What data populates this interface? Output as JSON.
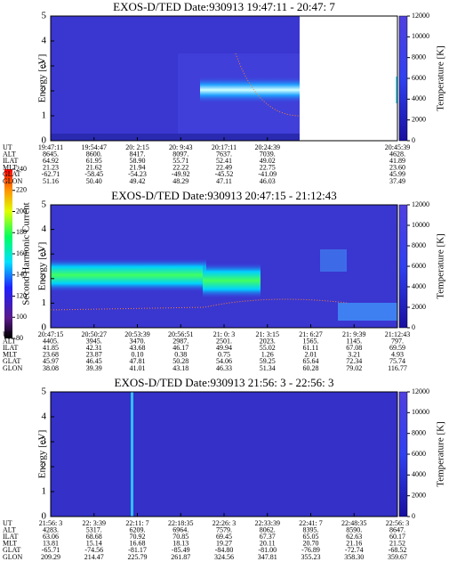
{
  "panels": [
    {
      "title": "EXOS-D/TED   Date:930913  19:47:11 - 20:47: 7",
      "ylabel": "Energy [eV]",
      "yticks": [
        0,
        1,
        2,
        3,
        4,
        5
      ],
      "y2label": "Temperature [K]",
      "y2ticks": [
        0,
        2000,
        4000,
        6000,
        8000,
        10000,
        12000
      ],
      "table": {
        "labels": [
          "UT",
          "ALT",
          "ILAT",
          "MLT",
          "GLAT",
          "GLON"
        ],
        "rows": [
          [
            "19:47:11",
            "19:54:47",
            "20: 2:15",
            "20: 9:43",
            "20:17:11",
            "20:24:39",
            "20:45:39"
          ],
          [
            "8645.",
            "8600.",
            "8417.",
            "8097.",
            "7637.",
            "7039.",
            "4628."
          ],
          [
            "64.92",
            "61.95",
            "58.90",
            "55.71",
            "52.41",
            "49.02",
            "41.89"
          ],
          [
            "21.23",
            "21.62",
            "21.94",
            "22.22",
            "22.49",
            "22.75",
            "23.60"
          ],
          [
            "-62.71",
            "-58.45",
            "-54.23",
            "-49.92",
            "-45.52",
            "-41.09",
            "45.99"
          ],
          [
            "51.16",
            "50.40",
            "49.42",
            "48.29",
            "47.11",
            "46.03",
            "37.49"
          ]
        ]
      }
    },
    {
      "title": "EXOS-D/TED   Date:930913  20:47:15 - 21:12:43",
      "ylabel": "Energy [eV]",
      "yticks": [
        0,
        1,
        2,
        3,
        4,
        5
      ],
      "y2label": "Temperature [K]",
      "y2ticks": [
        0,
        2000,
        4000,
        6000,
        8000,
        10000,
        12000
      ],
      "table": {
        "labels": [
          "UT",
          "ALT",
          "ILAT",
          "MLT",
          "GLAT",
          "GLON"
        ],
        "rows": [
          [
            "20:47:15",
            "20:50:27",
            "20:53:39",
            "20:56:51",
            "21: 0: 3",
            "21: 3:15",
            "21: 6:27",
            "21: 9:39",
            "21:12:43"
          ],
          [
            "4405.",
            "3945.",
            "3470.",
            "2987.",
            "2501.",
            "2023.",
            "1565.",
            "1145.",
            "797."
          ],
          [
            "41.85",
            "42.31",
            "43.68",
            "46.17",
            "49.94",
            "55.02",
            "61.11",
            "67.08",
            "69.59"
          ],
          [
            "23.68",
            "23.87",
            "0.10",
            "0.38",
            "0.75",
            "1.26",
            "2.01",
            "3.21",
            "4.93"
          ],
          [
            "45.97",
            "46.45",
            "47.81",
            "50.28",
            "54.06",
            "59.25",
            "65.64",
            "72.34",
            "75.74"
          ],
          [
            "38.08",
            "39.39",
            "41.01",
            "43.18",
            "46.33",
            "51.34",
            "60.28",
            "79.02",
            "116.77"
          ]
        ]
      }
    },
    {
      "title": "EXOS-D/TED   Date:930913  21:56: 3 - 22:56: 3",
      "ylabel": "Energy [eV]",
      "yticks": [
        0,
        1,
        2,
        3,
        4,
        5
      ],
      "y2label": "Temperature [K]",
      "y2ticks": [
        0,
        2000,
        4000,
        6000,
        8000,
        10000,
        12000
      ],
      "table": {
        "labels": [
          "UT",
          "ALT",
          "ILAT",
          "MLT",
          "GLAT",
          "GLON"
        ],
        "rows": [
          [
            "21:56: 3",
            "22: 3:39",
            "22:11: 7",
            "22:18:35",
            "22:26: 3",
            "22:33:39",
            "22:41: 7",
            "22:48:35",
            "22:56: 3"
          ],
          [
            "4283.",
            "5317.",
            "6209.",
            "6964.",
            "7579.",
            "8062.",
            "8395.",
            "8590.",
            "8647."
          ],
          [
            "63.06",
            "68.68",
            "70.92",
            "70.85",
            "69.45",
            "67.37",
            "65.05",
            "62.63",
            "60.17"
          ],
          [
            "13.81",
            "15.14",
            "16.68",
            "18.13",
            "19.27",
            "20.11",
            "20.70",
            "21.16",
            "21.52"
          ],
          [
            "-65.71",
            "-74.56",
            "-81.17",
            "-85.49",
            "-84.80",
            "-81.00",
            "-76.89",
            "-72.74",
            "-68.52"
          ],
          [
            "209.29",
            "214.47",
            "225.79",
            "261.87",
            "324.56",
            "347.81",
            "355.23",
            "358.30",
            "359.67"
          ]
        ]
      }
    }
  ],
  "colorbar": {
    "label": "Second Harmonic Current",
    "ticks": [
      80,
      100,
      120,
      140,
      160,
      180,
      200,
      220,
      240
    ]
  }
}
